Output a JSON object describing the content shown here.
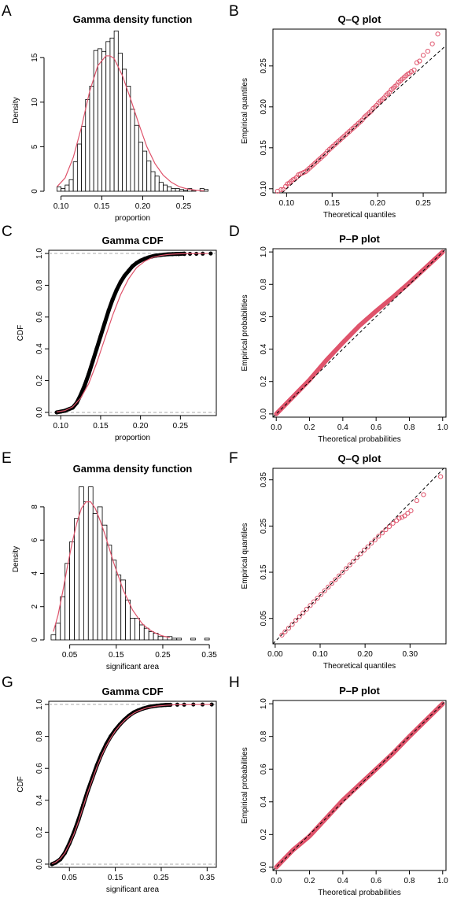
{
  "colors": {
    "fit": "#DF536B",
    "bars_fill": "#FFFFFF",
    "bars_stroke": "#000000",
    "reference_line": "#000000",
    "hline": "#AAAAAA",
    "ecdf": "#000000"
  },
  "chart_data": [
    {
      "panel": "A",
      "type": "bar",
      "title": "Gamma density function",
      "xlabel": "proportion",
      "ylabel": "Density",
      "xlim": [
        0.085,
        0.29
      ],
      "ylim": [
        0,
        18.2
      ],
      "xticks": [
        0.1,
        0.15,
        0.2,
        0.25
      ],
      "xtick_labels": [
        "0.10",
        "0.15",
        "0.20",
        "0.25"
      ],
      "yticks": [
        0,
        5,
        10,
        15
      ],
      "ytick_labels": [
        "0",
        "5",
        "10",
        "15"
      ],
      "box": false,
      "bin_width": 0.005,
      "bin_start": 0.095,
      "values": [
        0.5,
        0.3,
        0.7,
        1.3,
        3.3,
        5.3,
        7.3,
        10.3,
        11.8,
        15.8,
        16.0,
        15.7,
        16.8,
        17.2,
        18.0,
        15.5,
        13.7,
        11.8,
        9.2,
        7.4,
        5.5,
        4.5,
        3.4,
        2.2,
        1.7,
        1.0,
        0.7,
        0.5,
        0.3,
        0.3,
        0.2,
        0.1,
        0.3,
        0.1,
        0.0,
        0.3,
        0.2
      ],
      "fit_curve": {
        "name": "gamma",
        "x": [
          0.095,
          0.105,
          0.115,
          0.125,
          0.135,
          0.145,
          0.155,
          0.16,
          0.165,
          0.175,
          0.185,
          0.195,
          0.205,
          0.215,
          0.225,
          0.235,
          0.245,
          0.255,
          0.265,
          0.275
        ],
        "y": [
          0.5,
          1.5,
          3.8,
          7.2,
          11.2,
          14.1,
          15.2,
          15.2,
          14.9,
          13.0,
          10.4,
          7.6,
          5.0,
          3.1,
          1.8,
          1.0,
          0.5,
          0.25,
          0.12,
          0.05
        ]
      }
    },
    {
      "panel": "B",
      "type": "scatter",
      "title": "Q–Q plot",
      "xlabel": "Theoretical quantiles",
      "ylabel": "Empirical quantiles",
      "xlim": [
        0.085,
        0.275
      ],
      "ylim": [
        0.095,
        0.295
      ],
      "xticks": [
        0.1,
        0.15,
        0.2,
        0.25
      ],
      "xtick_labels": [
        "0.10",
        "0.15",
        "0.20",
        "0.25"
      ],
      "yticks": [
        0.1,
        0.15,
        0.2,
        0.25
      ],
      "ytick_labels": [
        "0.10",
        "0.15",
        "0.20",
        "0.25"
      ],
      "box": true,
      "reference_line": {
        "intercept": 0,
        "slope": 1
      },
      "x": [
        0.09,
        0.094,
        0.096,
        0.099,
        0.101,
        0.103,
        0.105,
        0.107,
        0.109,
        0.111,
        0.113,
        0.115,
        0.117,
        0.119,
        0.121,
        0.123,
        0.125,
        0.127,
        0.129,
        0.131,
        0.133,
        0.135,
        0.137,
        0.139,
        0.141,
        0.143,
        0.145,
        0.147,
        0.149,
        0.151,
        0.153,
        0.155,
        0.157,
        0.159,
        0.161,
        0.163,
        0.165,
        0.167,
        0.169,
        0.171,
        0.173,
        0.175,
        0.177,
        0.179,
        0.181,
        0.183,
        0.185,
        0.187,
        0.189,
        0.191,
        0.193,
        0.195,
        0.197,
        0.199,
        0.201,
        0.203,
        0.205,
        0.207,
        0.209,
        0.211,
        0.213,
        0.215,
        0.217,
        0.219,
        0.221,
        0.223,
        0.225,
        0.227,
        0.229,
        0.231,
        0.233,
        0.235,
        0.237,
        0.24,
        0.243,
        0.246,
        0.25,
        0.255,
        0.26,
        0.266
      ],
      "y": [
        0.097,
        0.099,
        0.099,
        0.103,
        0.106,
        0.107,
        0.109,
        0.111,
        0.112,
        0.114,
        0.117,
        0.118,
        0.119,
        0.12,
        0.121,
        0.123,
        0.125,
        0.127,
        0.129,
        0.131,
        0.133,
        0.135,
        0.137,
        0.139,
        0.141,
        0.143,
        0.146,
        0.148,
        0.15,
        0.152,
        0.154,
        0.156,
        0.158,
        0.16,
        0.162,
        0.164,
        0.166,
        0.168,
        0.17,
        0.172,
        0.174,
        0.176,
        0.178,
        0.18,
        0.182,
        0.184,
        0.187,
        0.189,
        0.191,
        0.193,
        0.195,
        0.198,
        0.2,
        0.202,
        0.205,
        0.207,
        0.209,
        0.211,
        0.214,
        0.216,
        0.218,
        0.221,
        0.223,
        0.225,
        0.227,
        0.23,
        0.232,
        0.234,
        0.236,
        0.238,
        0.24,
        0.241,
        0.243,
        0.245,
        0.254,
        0.256,
        0.263,
        0.268,
        0.277,
        0.289
      ]
    },
    {
      "panel": "C",
      "type": "line",
      "title": "Gamma CDF",
      "xlabel": "proportion",
      "ylabel": "CDF",
      "xlim": [
        0.085,
        0.295
      ],
      "ylim": [
        -0.02,
        1.02
      ],
      "xticks": [
        0.1,
        0.15,
        0.2,
        0.25
      ],
      "xtick_labels": [
        "0.10",
        "0.15",
        "0.20",
        "0.25"
      ],
      "yticks": [
        0.0,
        0.2,
        0.4,
        0.6,
        0.8,
        1.0
      ],
      "ytick_labels": [
        "0.0",
        "0.2",
        "0.4",
        "0.6",
        "0.8",
        "1.0"
      ],
      "box": true,
      "hlines": [
        0,
        1
      ],
      "empirical": {
        "x": [
          0.095,
          0.1,
          0.105,
          0.11,
          0.115,
          0.12,
          0.125,
          0.13,
          0.135,
          0.14,
          0.145,
          0.15,
          0.155,
          0.16,
          0.165,
          0.17,
          0.175,
          0.18,
          0.185,
          0.19,
          0.195,
          0.2,
          0.205,
          0.21,
          0.215,
          0.22,
          0.225,
          0.23,
          0.235,
          0.24,
          0.245,
          0.25,
          0.255
        ],
        "y": [
          0.0,
          0.005,
          0.01,
          0.02,
          0.03,
          0.06,
          0.11,
          0.17,
          0.24,
          0.32,
          0.4,
          0.48,
          0.56,
          0.64,
          0.71,
          0.77,
          0.82,
          0.86,
          0.89,
          0.92,
          0.94,
          0.955,
          0.966,
          0.975,
          0.982,
          0.987,
          0.99,
          0.993,
          0.995,
          0.996,
          0.997,
          0.998,
          0.999
        ]
      },
      "tail_points": {
        "x": [
          0.248,
          0.255,
          0.262,
          0.27,
          0.278,
          0.288
        ],
        "y": [
          0.996,
          0.997,
          0.998,
          0.998,
          0.999,
          1.0
        ]
      },
      "fit_curve": {
        "name": "gamma",
        "x": [
          0.095,
          0.105,
          0.115,
          0.125,
          0.135,
          0.145,
          0.155,
          0.165,
          0.175,
          0.185,
          0.195,
          0.205,
          0.215,
          0.225,
          0.235,
          0.245,
          0.255,
          0.265,
          0.275,
          0.285
        ],
        "y": [
          0.003,
          0.011,
          0.035,
          0.09,
          0.18,
          0.31,
          0.46,
          0.61,
          0.74,
          0.84,
          0.91,
          0.95,
          0.975,
          0.987,
          0.994,
          0.997,
          0.999,
          0.9995,
          1.0,
          1.0
        ]
      }
    },
    {
      "panel": "D",
      "type": "scatter",
      "title": "P–P plot",
      "xlabel": "Theoretical probabilities",
      "ylabel": "Empirical probabilities",
      "xlim": [
        -0.02,
        1.02
      ],
      "ylim": [
        -0.02,
        1.02
      ],
      "xticks": [
        0.0,
        0.2,
        0.4,
        0.6,
        0.8,
        1.0
      ],
      "xtick_labels": [
        "0.0",
        "0.2",
        "0.4",
        "0.6",
        "0.8",
        "1.0"
      ],
      "yticks": [
        0.0,
        0.2,
        0.4,
        0.6,
        0.8,
        1.0
      ],
      "ytick_labels": [
        "0.0",
        "0.2",
        "0.4",
        "0.6",
        "0.8",
        "1.0"
      ],
      "box": true,
      "reference_line": {
        "intercept": 0,
        "slope": 1
      },
      "dense": true,
      "deviation": [
        [
          0.0,
          0.0
        ],
        [
          0.1,
          0.005
        ],
        [
          0.2,
          0.01
        ],
        [
          0.3,
          0.03
        ],
        [
          0.4,
          0.04
        ],
        [
          0.5,
          0.045
        ],
        [
          0.6,
          0.035
        ],
        [
          0.7,
          0.02
        ],
        [
          0.8,
          0.01
        ],
        [
          0.9,
          0.005
        ],
        [
          1.0,
          0.0
        ]
      ]
    },
    {
      "panel": "E",
      "type": "bar",
      "title": "Gamma density function",
      "xlabel": "significant area",
      "ylabel": "Density",
      "xlim": [
        0.005,
        0.365
      ],
      "ylim": [
        0,
        9.7
      ],
      "xticks": [
        0.05,
        0.15,
        0.25,
        0.35
      ],
      "xtick_labels": [
        "0.05",
        "0.15",
        "0.25",
        "0.35"
      ],
      "yticks": [
        0,
        2,
        4,
        6,
        8
      ],
      "ytick_labels": [
        "0",
        "2",
        "4",
        "6",
        "8"
      ],
      "box": false,
      "bin_width": 0.01,
      "bin_start": 0.01,
      "values": [
        0.3,
        1.0,
        2.6,
        4.6,
        5.9,
        7.3,
        9.2,
        8.3,
        9.2,
        7.6,
        8.0,
        6.9,
        5.7,
        4.8,
        3.9,
        3.6,
        2.4,
        1.3,
        1.3,
        0.9,
        0.7,
        0.5,
        0.4,
        0.2,
        0.2,
        0.2,
        0.1,
        0.1,
        0.0,
        0.0,
        0.1,
        0.0,
        0.0,
        0.1
      ],
      "fit_curve": {
        "name": "gamma",
        "x": [
          0.015,
          0.025,
          0.035,
          0.045,
          0.055,
          0.065,
          0.075,
          0.085,
          0.095,
          0.105,
          0.115,
          0.125,
          0.135,
          0.145,
          0.155,
          0.165,
          0.175,
          0.185,
          0.195,
          0.205,
          0.215,
          0.225,
          0.235,
          0.245,
          0.255,
          0.265
        ],
        "y": [
          0.5,
          1.5,
          2.9,
          4.4,
          5.8,
          7.0,
          7.9,
          8.3,
          8.3,
          7.9,
          7.2,
          6.4,
          5.5,
          4.6,
          3.8,
          3.0,
          2.4,
          1.8,
          1.4,
          1.0,
          0.75,
          0.55,
          0.4,
          0.28,
          0.2,
          0.14
        ]
      }
    },
    {
      "panel": "F",
      "type": "scatter",
      "title": "Q–Q plot",
      "xlabel": "Theoretical quantiles",
      "ylabel": "Empirical quantiles",
      "xlim": [
        -0.005,
        0.38
      ],
      "ylim": [
        -0.005,
        0.375
      ],
      "xticks": [
        0.0,
        0.1,
        0.2,
        0.3
      ],
      "xtick_labels": [
        "0.00",
        "0.10",
        "0.20",
        "0.30"
      ],
      "yticks": [
        0.05,
        0.15,
        0.25,
        0.35
      ],
      "ytick_labels": [
        "0.05",
        "0.15",
        "0.25",
        "0.35"
      ],
      "box": true,
      "reference_line": {
        "intercept": 0,
        "slope": 1
      },
      "x": [
        0.015,
        0.022,
        0.03,
        0.038,
        0.046,
        0.054,
        0.062,
        0.07,
        0.078,
        0.086,
        0.094,
        0.102,
        0.11,
        0.118,
        0.126,
        0.134,
        0.142,
        0.15,
        0.158,
        0.166,
        0.174,
        0.182,
        0.19,
        0.198,
        0.206,
        0.214,
        0.222,
        0.23,
        0.238,
        0.246,
        0.254,
        0.262,
        0.27,
        0.276,
        0.282,
        0.288,
        0.295,
        0.302,
        0.315,
        0.33,
        0.368
      ],
      "y": [
        0.014,
        0.021,
        0.029,
        0.037,
        0.046,
        0.054,
        0.062,
        0.07,
        0.078,
        0.086,
        0.094,
        0.102,
        0.11,
        0.118,
        0.126,
        0.134,
        0.142,
        0.15,
        0.158,
        0.166,
        0.174,
        0.182,
        0.19,
        0.198,
        0.205,
        0.213,
        0.22,
        0.228,
        0.235,
        0.242,
        0.249,
        0.256,
        0.262,
        0.267,
        0.269,
        0.272,
        0.278,
        0.283,
        0.305,
        0.318,
        0.357
      ]
    },
    {
      "panel": "G",
      "type": "line",
      "title": "Gamma CDF",
      "xlabel": "significant area",
      "ylabel": "CDF",
      "xlim": [
        0.005,
        0.37
      ],
      "ylim": [
        -0.02,
        1.02
      ],
      "xticks": [
        0.05,
        0.15,
        0.25,
        0.35
      ],
      "xtick_labels": [
        "0.05",
        "0.15",
        "0.25",
        "0.35"
      ],
      "yticks": [
        0.0,
        0.2,
        0.4,
        0.6,
        0.8,
        1.0
      ],
      "ytick_labels": [
        "0.0",
        "0.2",
        "0.4",
        "0.6",
        "0.8",
        "1.0"
      ],
      "box": true,
      "hlines": [
        0,
        1
      ],
      "empirical": {
        "x": [
          0.012,
          0.02,
          0.03,
          0.04,
          0.05,
          0.06,
          0.07,
          0.08,
          0.09,
          0.1,
          0.11,
          0.12,
          0.13,
          0.14,
          0.15,
          0.16,
          0.17,
          0.18,
          0.19,
          0.2,
          0.21,
          0.22,
          0.23,
          0.24,
          0.25,
          0.26,
          0.27
        ],
        "y": [
          0.0,
          0.01,
          0.03,
          0.07,
          0.13,
          0.2,
          0.28,
          0.37,
          0.46,
          0.54,
          0.62,
          0.69,
          0.75,
          0.8,
          0.84,
          0.875,
          0.905,
          0.93,
          0.95,
          0.963,
          0.974,
          0.982,
          0.988,
          0.992,
          0.995,
          0.997,
          0.998
        ]
      },
      "tail_points": {
        "x": [
          0.27,
          0.285,
          0.3,
          0.32,
          0.34,
          0.36
        ],
        "y": [
          0.998,
          0.999,
          0.999,
          1.0,
          1.0,
          1.0
        ]
      },
      "fit_curve": {
        "name": "gamma",
        "x": [
          0.012,
          0.02,
          0.03,
          0.04,
          0.05,
          0.06,
          0.07,
          0.08,
          0.09,
          0.1,
          0.11,
          0.12,
          0.13,
          0.14,
          0.15,
          0.16,
          0.17,
          0.18,
          0.19,
          0.2,
          0.22,
          0.24,
          0.26,
          0.28,
          0.3,
          0.33,
          0.36
        ],
        "y": [
          0.003,
          0.012,
          0.034,
          0.07,
          0.125,
          0.19,
          0.27,
          0.36,
          0.45,
          0.53,
          0.61,
          0.68,
          0.74,
          0.79,
          0.835,
          0.87,
          0.9,
          0.925,
          0.945,
          0.96,
          0.98,
          0.99,
          0.995,
          0.998,
          0.999,
          1.0,
          1.0
        ]
      }
    },
    {
      "panel": "H",
      "type": "scatter",
      "title": "P–P plot",
      "xlabel": "Theoretical probabilities",
      "ylabel": "Empirical probabilities",
      "xlim": [
        -0.02,
        1.02
      ],
      "ylim": [
        -0.02,
        1.02
      ],
      "xticks": [
        0.0,
        0.2,
        0.4,
        0.6,
        0.8,
        1.0
      ],
      "xtick_labels": [
        "0.0",
        "0.2",
        "0.4",
        "0.6",
        "0.8",
        "1.0"
      ],
      "yticks": [
        0.0,
        0.2,
        0.4,
        0.6,
        0.8,
        1.0
      ],
      "ytick_labels": [
        "0.0",
        "0.2",
        "0.4",
        "0.6",
        "0.8",
        "1.0"
      ],
      "box": true,
      "reference_line": {
        "intercept": 0,
        "slope": 1
      },
      "dense": true,
      "deviation": [
        [
          0.0,
          0.0
        ],
        [
          0.1,
          0.005
        ],
        [
          0.2,
          -0.01
        ],
        [
          0.3,
          0.0
        ],
        [
          0.4,
          0.01
        ],
        [
          0.5,
          0.005
        ],
        [
          0.6,
          0.0
        ],
        [
          0.7,
          -0.005
        ],
        [
          0.8,
          0.0
        ],
        [
          0.9,
          0.0
        ],
        [
          1.0,
          0.0
        ]
      ]
    }
  ]
}
